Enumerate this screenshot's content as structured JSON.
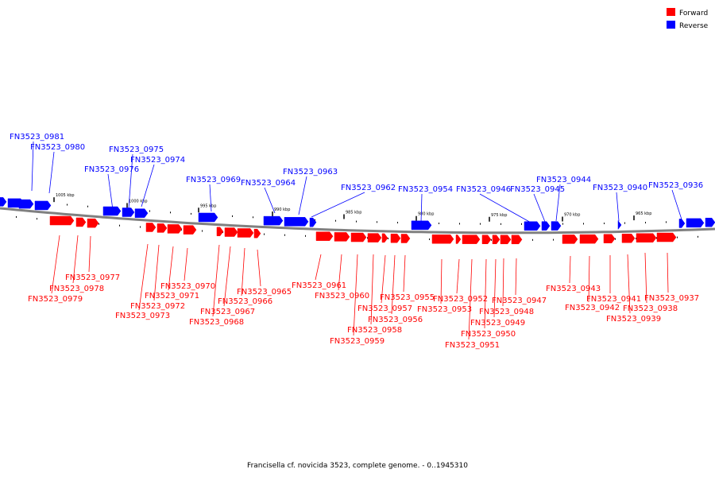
{
  "legend": {
    "forward": "Forward",
    "reverse": "Reverse"
  },
  "colors": {
    "forward": "#ff0000",
    "reverse": "#0000ff",
    "backbone": "#808080"
  },
  "caption": "Francisella cf. novicida 3523, complete genome. - 0..1945310",
  "ticks": [
    "1005 kbp",
    "1000 kbp",
    "995 kbp",
    "990 kbp",
    "985 kbp",
    "980 kbp",
    "975 kbp",
    "970 kbp",
    "965 kbp"
  ],
  "reverse_genes": [
    "FN3523_0981",
    "FN3523_0980",
    "FN3523_0976",
    "FN3523_0975",
    "FN3523_0974",
    "FN3523_0969",
    "FN3523_0964",
    "FN3523_0963",
    "FN3523_0962",
    "FN3523_0954",
    "FN3523_0946",
    "FN3523_0945",
    "FN3523_0944",
    "FN3523_0940",
    "FN3523_0936"
  ],
  "forward_genes": [
    "FN3523_0979",
    "FN3523_0978",
    "FN3523_0977",
    "FN3523_0973",
    "FN3523_0972",
    "FN3523_0971",
    "FN3523_0970",
    "FN3523_0968",
    "FN3523_0967",
    "FN3523_0966",
    "FN3523_0965",
    "FN3523_0961",
    "FN3523_0960",
    "FN3523_0959",
    "FN3523_0958",
    "FN3523_0957",
    "FN3523_0956",
    "FN3523_0955",
    "FN3523_0953",
    "FN3523_0952",
    "FN3523_0951",
    "FN3523_0950",
    "FN3523_0949",
    "FN3523_0948",
    "FN3523_0947",
    "FN3523_0943",
    "FN3523_0942",
    "FN3523_0941",
    "FN3523_0939",
    "FN3523_0938",
    "FN3523_0937"
  ]
}
